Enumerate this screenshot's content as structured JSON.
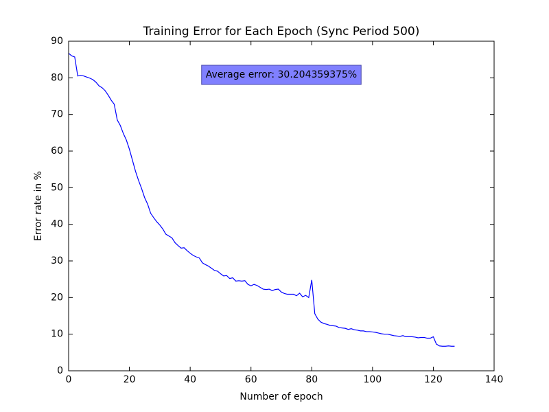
{
  "chart_data": {
    "type": "line",
    "title": "Training Error for Each Epoch (Sync Period 500)",
    "x_label": "Number of epoch",
    "y_label": "Error rate in %",
    "annotation": "Average error: 30.204359375%",
    "x": [
      0,
      1,
      2,
      3,
      4,
      5,
      6,
      7,
      8,
      9,
      10,
      11,
      12,
      13,
      14,
      15,
      16,
      17,
      18,
      19,
      20,
      21,
      22,
      23,
      24,
      25,
      26,
      27,
      28,
      29,
      30,
      31,
      32,
      33,
      34,
      35,
      36,
      37,
      38,
      39,
      40,
      41,
      42,
      43,
      44,
      45,
      46,
      47,
      48,
      49,
      50,
      51,
      52,
      53,
      54,
      55,
      56,
      57,
      58,
      59,
      60,
      61,
      62,
      63,
      64,
      65,
      66,
      67,
      68,
      69,
      70,
      71,
      72,
      73,
      74,
      75,
      76,
      77,
      78,
      79,
      80,
      81,
      82,
      83,
      84,
      85,
      86,
      87,
      88,
      89,
      90,
      91,
      92,
      93,
      94,
      95,
      96,
      97,
      98,
      99,
      100,
      101,
      102,
      103,
      104,
      105,
      106,
      107,
      108,
      109,
      110,
      111,
      112,
      113,
      114,
      115,
      116,
      117,
      118,
      119,
      120,
      121,
      122,
      123,
      124,
      125,
      126,
      127
    ],
    "series": [
      {
        "name": "Error rate",
        "color": "#0000ff",
        "values": [
          86.7,
          86,
          85.7,
          80.5,
          80.7,
          80.5,
          80.2,
          79.9,
          79.5,
          78.8,
          77.8,
          77.3,
          76.5,
          75.3,
          73.9,
          72.8,
          68.5,
          67,
          64.8,
          63,
          60.5,
          57.5,
          54.5,
          52,
          49.8,
          47.3,
          45.5,
          43,
          41.8,
          40.7,
          39.8,
          38.7,
          37.3,
          36.8,
          36.3,
          35,
          34.2,
          33.5,
          33.6,
          32.8,
          32.1,
          31.5,
          31.1,
          30.8,
          29.5,
          29,
          28.6,
          28,
          27.4,
          27.2,
          26.5,
          25.9,
          26,
          25.2,
          25.4,
          24.5,
          24.6,
          24.5,
          24.6,
          23.6,
          23.2,
          23.6,
          23.3,
          22.8,
          22.3,
          22.2,
          22.3,
          21.9,
          22.2,
          22.3,
          21.5,
          21.1,
          20.9,
          20.9,
          20.9,
          20.5,
          21.2,
          20.2,
          20.6,
          20,
          24.8,
          15.6,
          14.1,
          13.3,
          12.9,
          12.7,
          12.4,
          12.3,
          12.2,
          11.8,
          11.7,
          11.6,
          11.3,
          11.5,
          11.2,
          11.1,
          10.9,
          10.9,
          10.7,
          10.7,
          10.6,
          10.5,
          10.3,
          10.1,
          10,
          10,
          9.8,
          9.6,
          9.5,
          9.4,
          9.6,
          9.3,
          9.3,
          9.3,
          9.2,
          9,
          9.1,
          9.1,
          8.9,
          8.9,
          9.3,
          7.3,
          6.8,
          6.7,
          6.7,
          6.8,
          6.7,
          6.7
        ]
      }
    ],
    "xlim": [
      0,
      140
    ],
    "xticks": [
      0,
      20,
      40,
      60,
      80,
      100,
      120,
      140
    ],
    "ylim": [
      0,
      90
    ],
    "yticks": [
      0,
      10,
      20,
      30,
      40,
      50,
      60,
      70,
      80,
      90
    ],
    "grid": false
  }
}
